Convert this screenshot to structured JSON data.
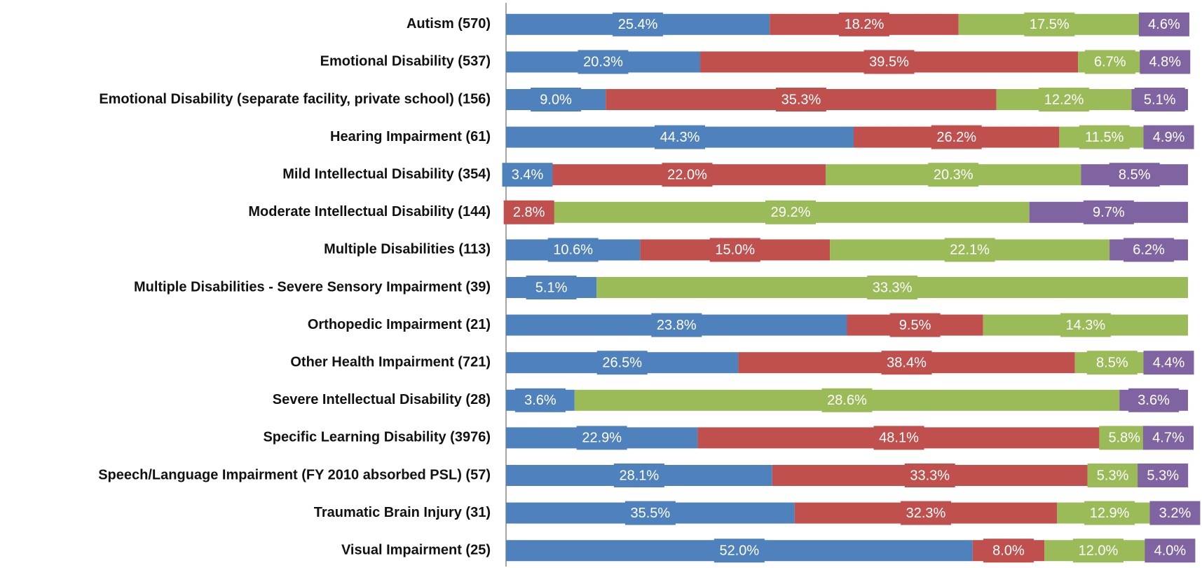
{
  "chart_data": {
    "type": "bar_stacked_100",
    "orientation": "horizontal",
    "categories": [
      "Autism (570)",
      "Emotional Disability (537)",
      "Emotional Disability (separate facility, private school) (156)",
      "Hearing Impairment (61)",
      "Mild Intellectual Disability (354)",
      "Moderate Intellectual Disability (144)",
      "Multiple Disabilities (113)",
      "Multiple Disabilities - Severe Sensory Impairment (39)",
      "Orthopedic Impairment (21)",
      "Other Health Impairment (721)",
      "Severe Intellectual Disability (28)",
      "Specific Learning Disability (3976)",
      "Speech/Language Impairment (FY 2010 absorbed PSL) (57)",
      "Traumatic Brain Injury (31)",
      "Visual Impairment (25)"
    ],
    "series": [
      {
        "color": "#4f81bd",
        "values": [
          25.4,
          20.3,
          9.0,
          44.3,
          3.4,
          null,
          10.6,
          5.1,
          23.8,
          26.5,
          3.6,
          22.9,
          28.1,
          35.5,
          52.0
        ],
        "value_labels": [
          "25.4%",
          "20.3%",
          "9.0%",
          "44.3%",
          "3.4%",
          null,
          "10.6%",
          "5.1%",
          "23.8%",
          "26.5%",
          "3.6%",
          "22.9%",
          "28.1%",
          "35.5%",
          "52.0%"
        ]
      },
      {
        "color": "#c0504d",
        "values": [
          18.2,
          39.5,
          35.3,
          26.2,
          22.0,
          2.8,
          15.0,
          null,
          9.5,
          38.4,
          null,
          48.1,
          33.3,
          32.3,
          8.0
        ],
        "value_labels": [
          "18.2%",
          "39.5%",
          "35.3%",
          "26.2%",
          "22.0%",
          "2.8%",
          "15.0%",
          null,
          "9.5%",
          "38.4%",
          null,
          "48.1%",
          "33.3%",
          "32.3%",
          "8.0%"
        ]
      },
      {
        "color": "#9bbb59",
        "values": [
          17.5,
          6.7,
          12.2,
          11.5,
          20.3,
          29.2,
          22.1,
          33.3,
          14.3,
          8.5,
          28.6,
          5.8,
          5.3,
          12.9,
          12.0
        ],
        "value_labels": [
          "17.5%",
          "6.7%",
          "12.2%",
          "11.5%",
          "20.3%",
          "29.2%",
          "22.1%",
          "33.3%",
          "14.3%",
          "8.5%",
          "28.6%",
          "5.8%",
          "5.3%",
          "12.9%",
          "12.0%"
        ]
      },
      {
        "color": "#8064a2",
        "values": [
          4.6,
          4.8,
          5.1,
          4.9,
          8.5,
          9.7,
          6.2,
          null,
          null,
          4.4,
          3.6,
          4.7,
          5.3,
          3.2,
          4.0
        ],
        "value_labels": [
          "4.6%",
          "4.8%",
          "5.1%",
          "4.9%",
          "8.5%",
          "9.7%",
          "6.2%",
          null,
          null,
          "4.4%",
          "3.6%",
          "4.7%",
          "5.3%",
          "3.2%",
          "4.0%"
        ]
      }
    ]
  }
}
